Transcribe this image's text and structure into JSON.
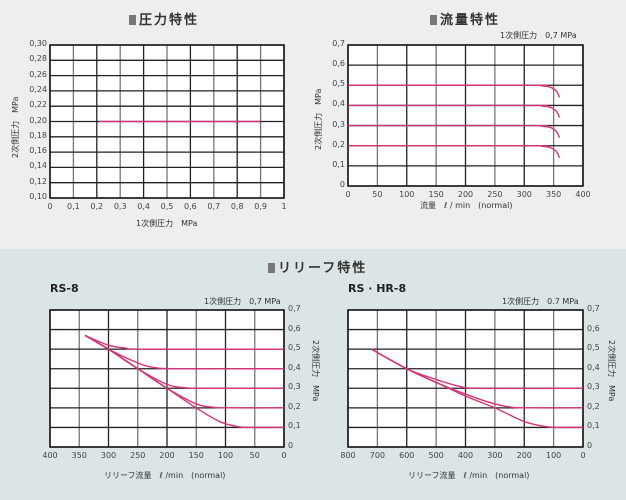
{
  "sections": {
    "pressure": {
      "title": "圧力特性"
    },
    "flow": {
      "title": "流量特性"
    },
    "relief": {
      "title": "リリーフ特性"
    }
  },
  "colors": {
    "curve": "#d6347a",
    "grid": "#222222",
    "grid_minor": "#777777",
    "bg_top": "#eceeef",
    "bg_bottom": "#dce5e5"
  },
  "chart_data": [
    {
      "id": "pressure-characteristics",
      "type": "line",
      "title": "圧力特性",
      "xlabel": "1次側圧力　MPa",
      "ylabel": "2次側圧力　MPa",
      "xlim": [
        0,
        1
      ],
      "ylim": [
        0.1,
        0.3
      ],
      "xticks": [
        "0",
        "0,1",
        "0,2",
        "0,3",
        "0,4",
        "0,5",
        "0,6",
        "0,7",
        "0,8",
        "0,9",
        "1"
      ],
      "yticks": [
        "0,10",
        "0,12",
        "0,14",
        "0,16",
        "0,18",
        "0,20",
        "0,22",
        "0,24",
        "0,26",
        "0,28",
        "0,30"
      ],
      "grid": true,
      "series": [
        {
          "name": "2次側圧力",
          "x": [
            0.21,
            0.9
          ],
          "y": [
            0.2,
            0.2
          ]
        }
      ]
    },
    {
      "id": "flow-characteristics",
      "type": "line",
      "title": "流量特性",
      "condition": "1次側圧力　0,7 MPa",
      "xlabel": "流量　ℓ / min　(normal)",
      "ylabel": "2次側圧力　MPa",
      "xlim": [
        0,
        400
      ],
      "ylim": [
        0,
        0.7
      ],
      "xticks": [
        "0",
        "50",
        "100",
        "150",
        "200",
        "250",
        "300",
        "350",
        "400"
      ],
      "yticks": [
        "0",
        "0,1",
        "0,2",
        "0,3",
        "0,4",
        "0,5",
        "0,6",
        "0,7"
      ],
      "grid": true,
      "series": [
        {
          "name": "0.5 MPa",
          "x": [
            0,
            310,
            330,
            345,
            355,
            360
          ],
          "y": [
            0.5,
            0.5,
            0.497,
            0.49,
            0.47,
            0.44
          ]
        },
        {
          "name": "0.4 MPa",
          "x": [
            0,
            310,
            330,
            345,
            355,
            360
          ],
          "y": [
            0.4,
            0.4,
            0.397,
            0.39,
            0.37,
            0.34
          ]
        },
        {
          "name": "0.3 MPa",
          "x": [
            0,
            310,
            330,
            345,
            355,
            360
          ],
          "y": [
            0.3,
            0.3,
            0.297,
            0.29,
            0.27,
            0.24
          ]
        },
        {
          "name": "0.2 MPa",
          "x": [
            0,
            310,
            330,
            345,
            355,
            360
          ],
          "y": [
            0.2,
            0.2,
            0.197,
            0.19,
            0.17,
            0.14
          ]
        }
      ]
    },
    {
      "id": "relief-rs-8",
      "type": "line",
      "title": "RS-8",
      "condition": "1次側圧力　0,7 MPa",
      "xlabel": "リリーフ流量　ℓ /min　(normal)",
      "ylabel": "2次側圧力　MPa",
      "xlim": [
        400,
        0
      ],
      "ylim": [
        0,
        0.7
      ],
      "xticks": [
        "400",
        "350",
        "300",
        "250",
        "200",
        "150",
        "100",
        "50",
        "0"
      ],
      "yticks": [
        "0",
        "0,1",
        "0,2",
        "0,3",
        "0,4",
        "0,5",
        "0,6",
        "0,7"
      ],
      "grid": true,
      "series": [
        {
          "name": "0.5 MPa",
          "x": [
            340,
            300,
            270,
            240,
            0
          ],
          "y": [
            0.57,
            0.52,
            0.505,
            0.5,
            0.5
          ]
        },
        {
          "name": "0.4 MPa",
          "x": [
            340,
            300,
            250,
            220,
            180,
            0
          ],
          "y": [
            0.57,
            0.5,
            0.43,
            0.405,
            0.4,
            0.4
          ]
        },
        {
          "name": "0.3 MPa",
          "x": [
            340,
            300,
            250,
            200,
            170,
            140,
            0
          ],
          "y": [
            0.57,
            0.5,
            0.4,
            0.32,
            0.303,
            0.3,
            0.3
          ]
        },
        {
          "name": "0.2 MPa",
          "x": [
            340,
            300,
            250,
            200,
            150,
            120,
            90,
            0
          ],
          "y": [
            0.57,
            0.5,
            0.4,
            0.3,
            0.22,
            0.203,
            0.2,
            0.2
          ]
        },
        {
          "name": "0.1 MPa",
          "x": [
            340,
            300,
            250,
            200,
            150,
            110,
            80,
            60,
            0
          ],
          "y": [
            0.57,
            0.5,
            0.4,
            0.3,
            0.2,
            0.13,
            0.105,
            0.1,
            0.1
          ]
        }
      ]
    },
    {
      "id": "relief-rs-hr-8",
      "type": "line",
      "title": "RS · HR-8",
      "condition": "1次側圧力　0.7 MPa",
      "xlabel": "リリーフ流量　ℓ /min　(normal)",
      "ylabel": "2次側圧力　MPa",
      "xlim": [
        800,
        0
      ],
      "ylim": [
        0,
        0.7
      ],
      "xticks": [
        "800",
        "700",
        "600",
        "500",
        "400",
        "300",
        "200",
        "100",
        "0"
      ],
      "yticks": [
        "0",
        "0,1",
        "0,2",
        "0,3",
        "0,4",
        "0,5",
        "0,6",
        "0,7"
      ],
      "grid": true,
      "series": [
        {
          "name": "0.3 MPa",
          "x": [
            720,
            600,
            500,
            420,
            350,
            0
          ],
          "y": [
            0.5,
            0.4,
            0.345,
            0.31,
            0.3,
            0.3
          ]
        },
        {
          "name": "0.2 MPa",
          "x": [
            720,
            600,
            500,
            400,
            300,
            240,
            180,
            0
          ],
          "y": [
            0.5,
            0.4,
            0.33,
            0.27,
            0.22,
            0.203,
            0.2,
            0.2
          ]
        },
        {
          "name": "0.1 MPa",
          "x": [
            720,
            600,
            500,
            400,
            300,
            200,
            130,
            90,
            0
          ],
          "y": [
            0.5,
            0.4,
            0.33,
            0.26,
            0.2,
            0.13,
            0.105,
            0.1,
            0.1
          ]
        }
      ]
    }
  ],
  "labels": {
    "c1": {
      "ylabel": "2次側圧力　MPa",
      "xlabel": "1次側圧力　MPa"
    },
    "c2": {
      "ylabel": "2次側圧力　MPa",
      "xlabel": "流量　ℓ / min　(normal)",
      "cond": "1次側圧力　0,7 MPa"
    },
    "c3": {
      "model": "RS-8",
      "cond": "1次側圧力　0,7 MPa",
      "ylabel": "2次側圧力　MPa",
      "xlabel": "リリーフ流量　ℓ /min　(normal)"
    },
    "c4": {
      "model": "RS · HR-8",
      "cond": "1次側圧力　0.7 MPa",
      "ylabel": "2次側圧力　MPa",
      "xlabel": "リリーフ流量　ℓ /min　(normal)"
    }
  }
}
